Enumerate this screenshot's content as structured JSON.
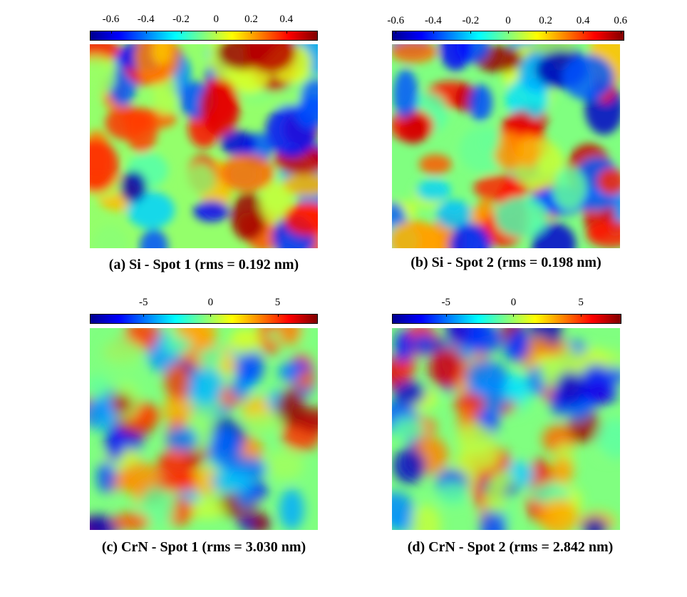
{
  "chart_data": [
    {
      "type": "heatmap",
      "caption": "(a) Si - Spot 1 (rms = 0.192 nm)",
      "colorbar": {
        "ticks": [
          "-0.6",
          "-0.4",
          "-0.2",
          "0",
          "0.2",
          "0.4"
        ],
        "tick_values": [
          -0.6,
          -0.4,
          -0.2,
          0,
          0.2,
          0.4
        ],
        "range": [
          -0.72,
          0.58
        ]
      },
      "colormap": "jet",
      "rms_nm": 0.192
    },
    {
      "type": "heatmap",
      "caption": "(b) Si - Spot 2 (rms = 0.198 nm)",
      "colorbar": {
        "ticks": [
          "-0.6",
          "-0.4",
          "-0.2",
          "0",
          "0.2",
          "0.4",
          "0.6"
        ],
        "tick_values": [
          -0.6,
          -0.4,
          -0.2,
          0,
          0.2,
          0.4,
          0.6
        ],
        "range": [
          -0.62,
          0.62
        ]
      },
      "colormap": "jet",
      "rms_nm": 0.198
    },
    {
      "type": "heatmap",
      "caption": "(c) CrN - Spot 1 (rms = 3.030 nm)",
      "colorbar": {
        "ticks": [
          "-5",
          "0",
          "5"
        ],
        "tick_values": [
          -5,
          0,
          5
        ],
        "range": [
          -9,
          8
        ]
      },
      "colormap": "jet",
      "rms_nm": 3.03
    },
    {
      "type": "heatmap",
      "caption": "(d) CrN - Spot 2 (rms = 2.842 nm)",
      "colorbar": {
        "ticks": [
          "-5",
          "0",
          "5"
        ],
        "tick_values": [
          -5,
          0,
          5
        ],
        "range": [
          -9,
          8
        ]
      },
      "colormap": "jet",
      "rms_nm": 2.842
    }
  ]
}
